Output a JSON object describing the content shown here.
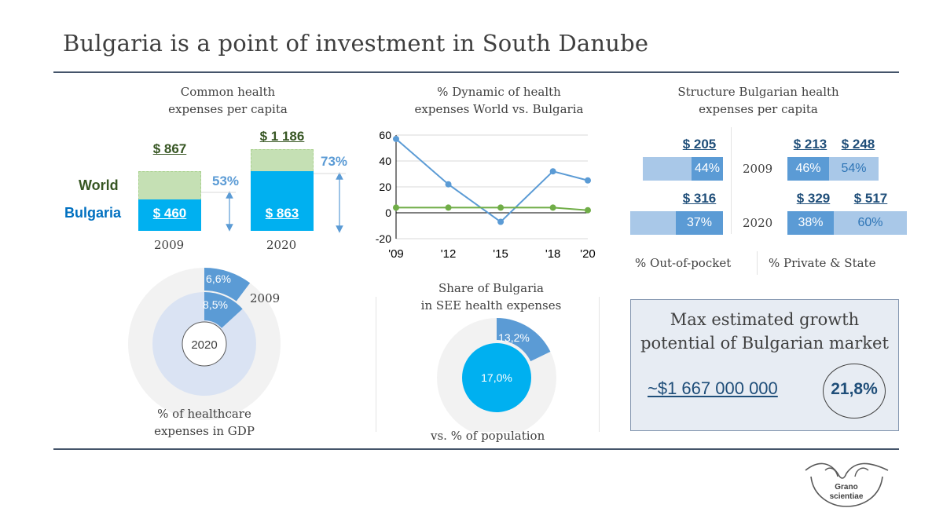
{
  "page": {
    "title": "Bulgaria is a point of investment in South Danube",
    "logo_text": [
      "Grano",
      "scientiae"
    ]
  },
  "panels": {
    "common": {
      "title_line1": "Common health",
      "title_line2": "expenses per capita",
      "world_label": "World",
      "bulgaria_label": "Bulgaria",
      "years": [
        "2009",
        "2020"
      ],
      "world_values": [
        "$ 867",
        "$ 1 186"
      ],
      "bulgaria_values": [
        "$ 460",
        "$ 863"
      ],
      "shares": [
        "53%",
        "73%"
      ]
    },
    "dynamic": {
      "title_line1": "% Dynamic of health",
      "title_line2": "expenses World vs. Bulgaria"
    },
    "structure": {
      "title_line1": "Structure Bulgarian health",
      "title_line2": "expenses per capita",
      "years": [
        "2009",
        "2020"
      ],
      "oop_values": [
        "$ 205",
        "$ 316"
      ],
      "oop_shares": [
        "44%",
        "37%"
      ],
      "private_values": [
        "$ 213",
        "$ 329"
      ],
      "private_shares": [
        "46%",
        "38%"
      ],
      "state_values": [
        "$ 248",
        "$ 517"
      ],
      "state_shares": [
        "54%",
        "60%"
      ],
      "legend_oop": "% Out-of-pocket",
      "legend_ps": "% Private & State"
    },
    "gdp": {
      "outer_label": "6,6%",
      "inner_label": "8,5%",
      "year_outer": "2009",
      "year_inner": "2020",
      "caption_line1": "% of healthcare",
      "caption_line2": "expenses in GDP"
    },
    "share": {
      "title_line1": "Share of Bulgaria",
      "title_line2": "in SEE health expenses",
      "outer_label": "13,2%",
      "inner_label": "17,0%",
      "caption": "vs. % of population"
    },
    "growth": {
      "title_line1": "Max estimated growth",
      "title_line2": "potential of Bulgarian market",
      "amount": "~$1 667 000 000",
      "percent": "21,8%"
    }
  },
  "colors": {
    "world": "#c5e0b4",
    "bulgaria": "#00b0f0",
    "line_world": "#70ad47",
    "line_bulgaria": "#5b9bd5",
    "dark_blue": "#5b9bd5",
    "light_blue": "#a9c8e8",
    "dark_green": "#375623",
    "navy": "#1f4e79"
  },
  "chart_data": [
    {
      "type": "bar",
      "title": "Common health expenses per capita",
      "categories": [
        "2009",
        "2020"
      ],
      "series": [
        {
          "name": "World",
          "values": [
            867,
            1186
          ]
        },
        {
          "name": "Bulgaria",
          "values": [
            460,
            863
          ]
        }
      ]
    },
    {
      "type": "line",
      "title": "% Dynamic of health expenses World vs. Bulgaria",
      "x": [
        "'09",
        "'12",
        "'15",
        "'18",
        "'20"
      ],
      "x_values": [
        2009,
        2012,
        2015,
        2018,
        2020
      ],
      "ylim": [
        -20,
        60
      ],
      "yticks": [
        -20,
        0,
        20,
        40,
        60
      ],
      "grid": true,
      "series": [
        {
          "name": "Bulgaria",
          "values": [
            57,
            22,
            -7,
            32,
            25
          ]
        },
        {
          "name": "World",
          "values": [
            4,
            4,
            4,
            4,
            2
          ]
        }
      ]
    },
    {
      "type": "pie",
      "title": "% of healthcare expenses in GDP",
      "series": [
        {
          "name": "2009",
          "values": [
            6.6
          ]
        },
        {
          "name": "2020",
          "values": [
            8.5
          ]
        }
      ]
    },
    {
      "type": "pie",
      "title": "Share of Bulgaria in SEE health expenses",
      "series": [
        {
          "name": "SEE health expenses",
          "values": [
            13.2
          ]
        },
        {
          "name": "population",
          "values": [
            17.0
          ]
        }
      ]
    }
  ]
}
